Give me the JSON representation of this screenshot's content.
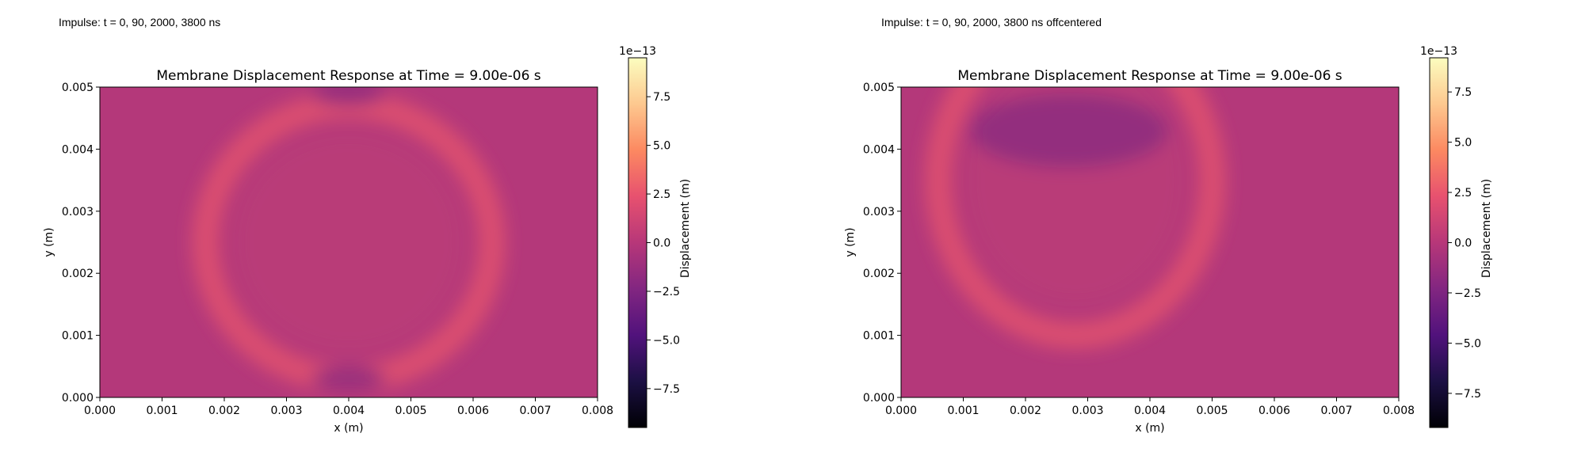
{
  "captions": [
    "Impulse: t = 0, 90, 2000, 3800 ns",
    "Impulse: t = 0, 90, 2000, 3800 ns offcentered"
  ],
  "colors": {
    "background_field": "#b4387a",
    "wave_ring": "#e0526e",
    "trough": "#8d2a7f"
  },
  "colormap": "magma",
  "chart_data": [
    {
      "type": "heatmap",
      "title": "Membrane Displacement Response at Time = 9.00e-06 s",
      "xlabel": "x (m)",
      "ylabel": "y (m)",
      "xlim": [
        0,
        0.008
      ],
      "ylim": [
        0,
        0.005
      ],
      "xticks": [
        "0.000",
        "0.001",
        "0.002",
        "0.003",
        "0.004",
        "0.005",
        "0.006",
        "0.007",
        "0.008"
      ],
      "yticks": [
        "0.000",
        "0.001",
        "0.002",
        "0.003",
        "0.004",
        "0.005"
      ],
      "colorbar": {
        "label": "Displacement (m)",
        "offset_label": "1e−13",
        "range": [
          -9.5,
          9.5
        ],
        "ticks": [
          "−7.5",
          "−5.0",
          "−2.5",
          "0.0",
          "2.5",
          "5.0",
          "7.5"
        ],
        "tick_values": [
          -7.5,
          -5.0,
          -2.5,
          0.0,
          2.5,
          5.0,
          7.5
        ]
      },
      "features": [
        {
          "kind": "ring",
          "center": [
            0.004,
            0.0025
          ],
          "radius_x": 0.0023,
          "radius_y": 0.0022,
          "value": 1.5
        },
        {
          "kind": "trough",
          "center": [
            0.004,
            0.0049
          ],
          "radius_x": 0.0006,
          "radius_y": 0.0002,
          "value": -0.5
        },
        {
          "kind": "trough",
          "center": [
            0.004,
            0.0003
          ],
          "radius_x": 0.0006,
          "radius_y": 0.0002,
          "value": -0.5
        }
      ]
    },
    {
      "type": "heatmap",
      "title": "Membrane Displacement Response at Time = 9.00e-06 s",
      "xlabel": "x (m)",
      "ylabel": "y (m)",
      "xlim": [
        0,
        0.008
      ],
      "ylim": [
        0,
        0.005
      ],
      "xticks": [
        "0.000",
        "0.001",
        "0.002",
        "0.003",
        "0.004",
        "0.005",
        "0.006",
        "0.007",
        "0.008"
      ],
      "yticks": [
        "0.000",
        "0.001",
        "0.002",
        "0.003",
        "0.004",
        "0.005"
      ],
      "colorbar": {
        "label": "Displacement (m)",
        "offset_label": "1e−13",
        "range": [
          -9.2,
          9.2
        ],
        "ticks": [
          "−7.5",
          "−5.0",
          "−2.5",
          "0.0",
          "2.5",
          "5.0",
          "7.5"
        ],
        "tick_values": [
          -7.5,
          -5.0,
          -2.5,
          0.0,
          2.5,
          5.0,
          7.5
        ]
      },
      "features": [
        {
          "kind": "ring",
          "center": [
            0.0028,
            0.0035
          ],
          "radius_x": 0.0022,
          "radius_y": 0.0025,
          "value": 1.5
        },
        {
          "kind": "trough",
          "center": [
            0.0027,
            0.0043
          ],
          "radius_x": 0.0016,
          "radius_y": 0.0006,
          "value": -1.0
        }
      ]
    }
  ]
}
